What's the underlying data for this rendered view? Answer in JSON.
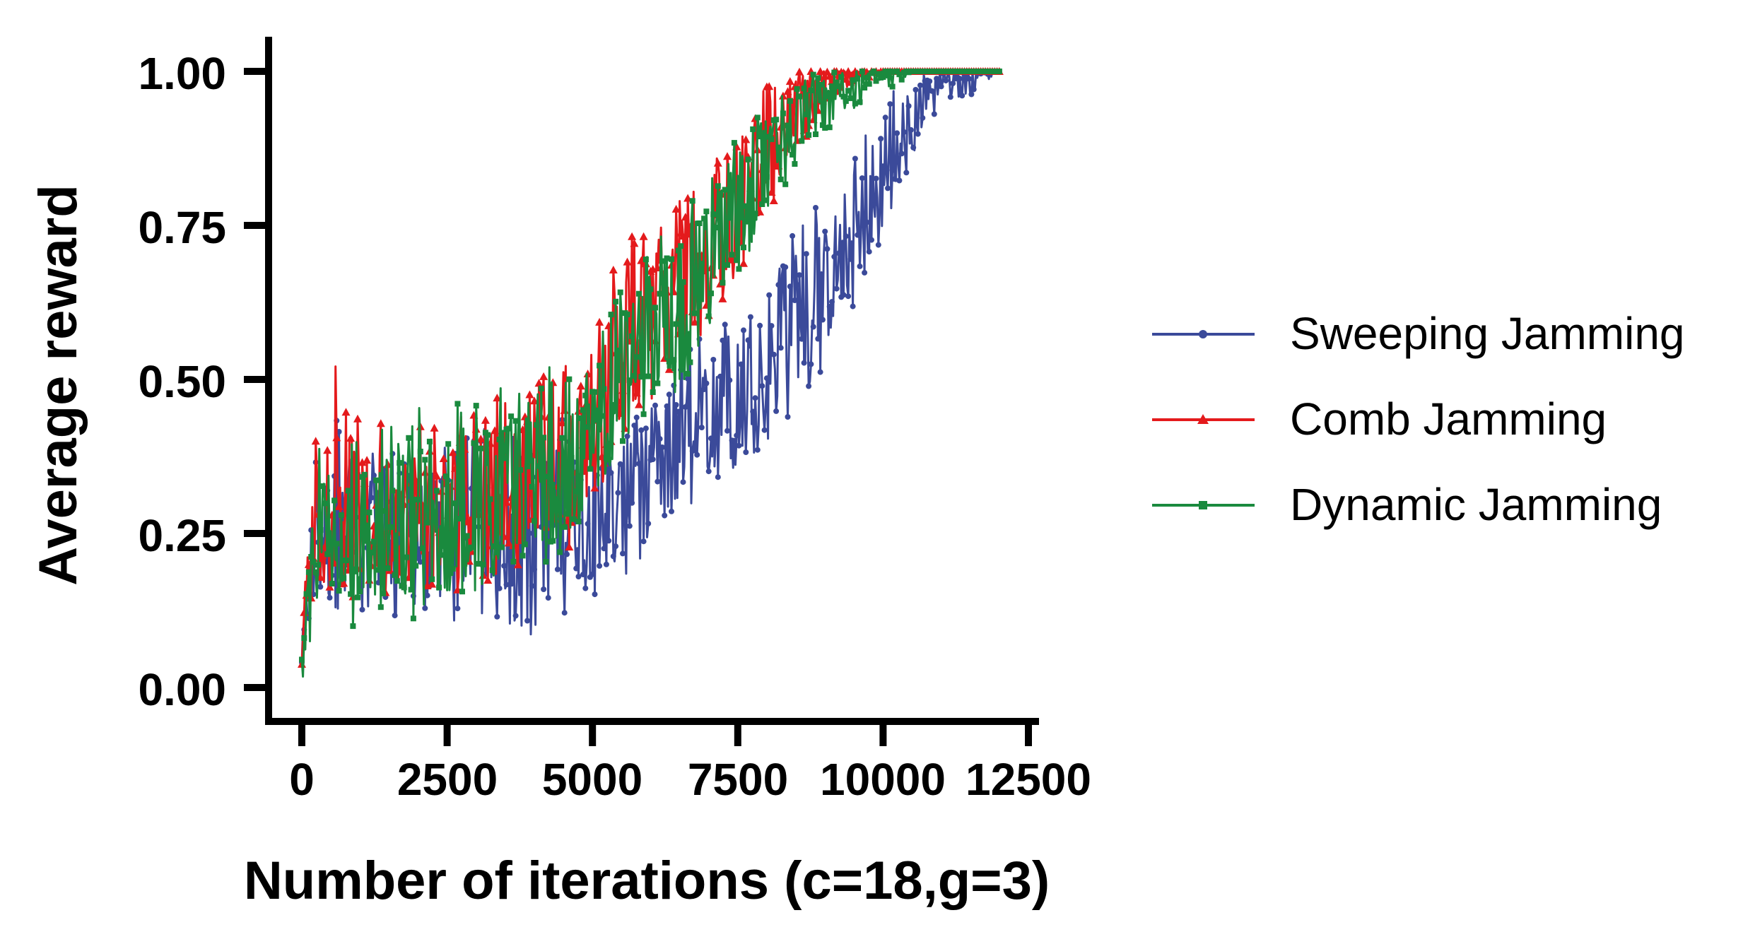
{
  "chart_data": {
    "type": "line",
    "title": "",
    "xlabel": "Number of iterations (c=18,g=3)",
    "ylabel": "Average reward",
    "xlim": [
      -600,
      12600
    ],
    "ylim": [
      -0.05,
      1.05
    ],
    "x_ticks": [
      0,
      2500,
      5000,
      7500,
      10000,
      12500
    ],
    "x_tick_labels": [
      "0",
      "2500",
      "5000",
      "7500",
      "10000",
      "12500"
    ],
    "y_ticks": [
      0,
      0.25,
      0.5,
      0.75,
      1.0
    ],
    "y_tick_labels": [
      "0.00",
      "0.25",
      "0.50",
      "0.75",
      "1.00"
    ],
    "grid": false,
    "legend_position": "right",
    "series": [
      {
        "name": "Sweeping Jamming",
        "color": "#3b4a9a",
        "marker": "circle",
        "x": [
          0,
          250,
          500,
          1000,
          1500,
          2000,
          2500,
          3000,
          3500,
          4000,
          4500,
          5000,
          5500,
          6000,
          6500,
          7000,
          7500,
          8000,
          8500,
          9000,
          9500,
          10000,
          10500,
          11000,
          11500,
          12000
        ],
        "mean": [
          0.05,
          0.25,
          0.24,
          0.24,
          0.24,
          0.24,
          0.25,
          0.26,
          0.26,
          0.27,
          0.28,
          0.27,
          0.3,
          0.34,
          0.4,
          0.45,
          0.5,
          0.55,
          0.6,
          0.65,
          0.73,
          0.8,
          0.92,
          0.99,
          1.0,
          1.0
        ],
        "low": [
          0.03,
          0.15,
          0.12,
          0.11,
          0.11,
          0.1,
          0.1,
          0.11,
          0.1,
          0.08,
          0.12,
          0.14,
          0.17,
          0.2,
          0.27,
          0.32,
          0.34,
          0.4,
          0.45,
          0.52,
          0.62,
          0.72,
          0.86,
          0.95,
          0.96,
          1.0
        ],
        "high": [
          0.1,
          0.4,
          0.46,
          0.38,
          0.38,
          0.38,
          0.4,
          0.42,
          0.42,
          0.44,
          0.44,
          0.4,
          0.42,
          0.47,
          0.54,
          0.58,
          0.63,
          0.7,
          0.75,
          0.8,
          0.9,
          0.95,
          1.0,
          1.0,
          1.0,
          1.0
        ]
      },
      {
        "name": "Comb Jamming",
        "color": "#e41a1c",
        "marker": "triangle",
        "x": [
          0,
          250,
          500,
          1000,
          1500,
          2000,
          2500,
          3000,
          3500,
          4000,
          4500,
          5000,
          5500,
          6000,
          6500,
          7000,
          7500,
          8000,
          8500,
          9000,
          9500,
          10000,
          10500,
          11000,
          11500,
          12000
        ],
        "mean": [
          0.05,
          0.3,
          0.32,
          0.28,
          0.28,
          0.28,
          0.29,
          0.31,
          0.33,
          0.34,
          0.36,
          0.4,
          0.56,
          0.6,
          0.66,
          0.72,
          0.8,
          0.88,
          0.95,
          0.99,
          1.0,
          1.0,
          1.0,
          1.0,
          1.0,
          1.0
        ],
        "low": [
          0.03,
          0.18,
          0.16,
          0.14,
          0.14,
          0.14,
          0.15,
          0.17,
          0.18,
          0.2,
          0.22,
          0.26,
          0.4,
          0.46,
          0.52,
          0.58,
          0.66,
          0.76,
          0.86,
          0.95,
          0.98,
          1.0,
          1.0,
          1.0,
          1.0,
          1.0
        ],
        "high": [
          0.1,
          0.45,
          0.54,
          0.44,
          0.44,
          0.44,
          0.44,
          0.46,
          0.48,
          0.5,
          0.52,
          0.55,
          0.74,
          0.76,
          0.82,
          0.86,
          0.92,
          0.98,
          1.0,
          1.0,
          1.0,
          1.0,
          1.0,
          1.0,
          1.0,
          1.0
        ]
      },
      {
        "name": "Dynamic Jamming",
        "color": "#1a8a3e",
        "marker": "square",
        "x": [
          0,
          250,
          500,
          1000,
          1500,
          2000,
          2500,
          3000,
          3500,
          4000,
          4500,
          5000,
          5500,
          6000,
          6500,
          7000,
          7500,
          8000,
          8500,
          9000,
          9500,
          10000,
          10500,
          11000,
          11500,
          12000
        ],
        "mean": [
          0.02,
          0.25,
          0.26,
          0.25,
          0.25,
          0.26,
          0.27,
          0.29,
          0.31,
          0.33,
          0.36,
          0.38,
          0.5,
          0.56,
          0.62,
          0.7,
          0.78,
          0.86,
          0.92,
          0.96,
          0.98,
          1.0,
          1.0,
          1.0,
          1.0,
          1.0
        ],
        "low": [
          0.0,
          0.1,
          0.1,
          0.09,
          0.1,
          0.1,
          0.12,
          0.14,
          0.16,
          0.18,
          0.22,
          0.26,
          0.36,
          0.42,
          0.48,
          0.58,
          0.66,
          0.76,
          0.84,
          0.9,
          0.94,
          0.96,
          1.0,
          1.0,
          1.0,
          1.0
        ],
        "high": [
          0.06,
          0.4,
          0.42,
          0.42,
          0.46,
          0.48,
          0.48,
          0.52,
          0.5,
          0.52,
          0.53,
          0.54,
          0.66,
          0.72,
          0.78,
          0.84,
          0.9,
          0.95,
          0.99,
          1.0,
          1.0,
          1.0,
          1.0,
          1.0,
          1.0,
          1.0
        ]
      }
    ]
  }
}
